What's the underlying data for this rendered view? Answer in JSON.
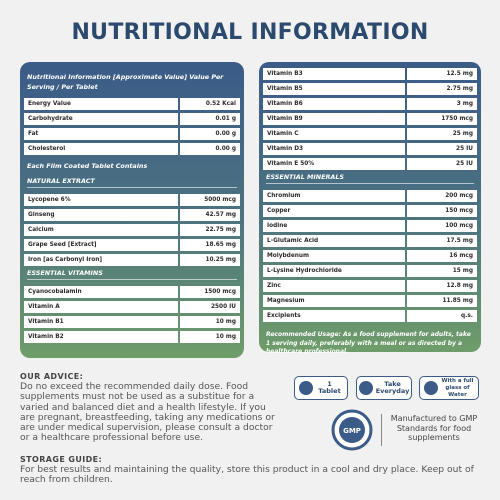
{
  "title": "NUTRITIONAL INFORMATION",
  "left_panel": {
    "header": "Nutritional Information [Approximate Value] Value Per Serving / Per Tablet",
    "rows": [
      [
        "Energy Value",
        "0.52 Kcal"
      ],
      [
        "Carbohydrate",
        "0.01 g"
      ],
      [
        "Fat",
        "0.00 g"
      ],
      [
        "Cholesterol",
        "0.00 g"
      ]
    ],
    "note": "Each Film Coated Tablet Contains",
    "sections": [
      {
        "heading": "NATURAL EXTRACT",
        "rows": [
          [
            "Lycopene 6%",
            "5000 mcg"
          ],
          [
            "Ginseng",
            "42.57 mg"
          ],
          [
            "Calcium",
            "22.75 mg"
          ],
          [
            "Grape Seed [Extract]",
            "18.65 mg"
          ],
          [
            "Iron [as Carbonyl Iron]",
            "10.25 mg"
          ]
        ]
      },
      {
        "heading": "ESSENTIAL VITAMINS",
        "rows": [
          [
            "Cyanocobalamin",
            "1500 mcg"
          ],
          [
            "Vitamin A",
            "2500 IU"
          ],
          [
            "Vitamin B1",
            "10 mg"
          ],
          [
            "Vitamin B2",
            "10 mg"
          ]
        ]
      }
    ]
  },
  "right_panel": {
    "rows": [
      [
        "Vitamin B3",
        "12.5 mg"
      ],
      [
        "Vitamin B5",
        "2.75 mg"
      ],
      [
        "Vitamin B6",
        "3 mg"
      ],
      [
        "Vitamin B9",
        "1750 mcg"
      ],
      [
        "Vitamin C",
        "25 mg"
      ],
      [
        "Vitamin D3",
        "25 IU"
      ],
      [
        "Vitamin E 50%",
        "25 IU"
      ]
    ],
    "sections": [
      {
        "heading": "ESSENTIAL MINERALS",
        "rows": [
          [
            "Chromium",
            "200 mcg"
          ],
          [
            "Copper",
            "150 mcg"
          ],
          [
            "Iodine",
            "100 mcg"
          ],
          [
            "L-Glutamic Acid",
            "17.5 mg"
          ],
          [
            "Molybdenum",
            "16 mcg"
          ],
          [
            "L-Lysine Hydrochloride",
            "15 mg"
          ],
          [
            "Zinc",
            "12.8 mg"
          ],
          [
            "Magnesium",
            "11.85 mg"
          ],
          [
            "Excipients",
            "q.s."
          ]
        ]
      }
    ],
    "usage": "Recommended Usage: As a food supplement for adults, take 1 serving daily, preferably with a meal or as directed by a healthcare professional."
  },
  "advice": {
    "heading": "OUR ADVICE:",
    "text": "Do no exceed the recommended daily dose. Food supplements must not be used as a substitue for a varied and balanced diet and a health lifestyle. If you are pregnant, breastfeeding, taking any medications or are under medical supervision, please consult a doctor or a healthcare professional before use."
  },
  "icons": [
    "1 Tablet",
    "Take Everyday",
    "With a full glass of Water"
  ],
  "gmp": {
    "badge": "GMP",
    "text": "Manufactured to GMP Standards for food supplements"
  },
  "storage": {
    "heading": "STORAGE GUIDE:",
    "text": "For best results and maintaining the quality, store this product in a cool and dry place. Keep out of reach from children."
  }
}
